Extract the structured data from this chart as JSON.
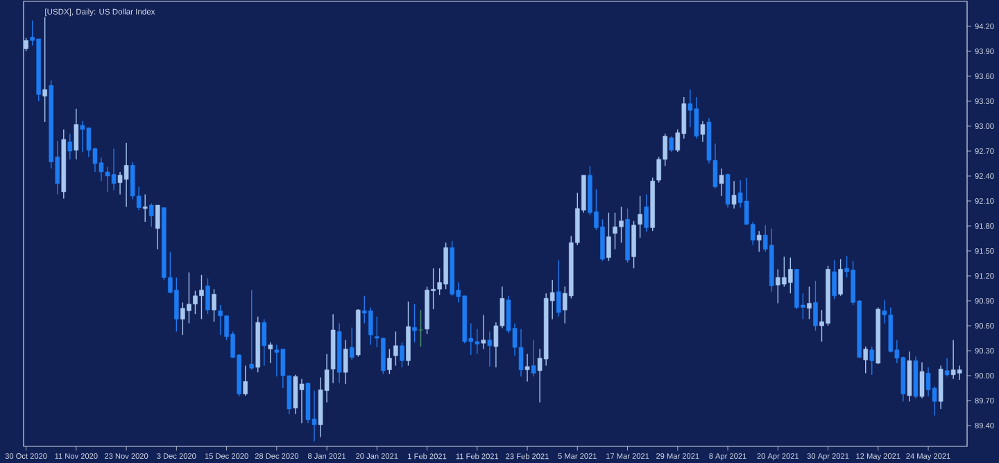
{
  "chart_data": {
    "type": "candlestick",
    "title": "[USDX], Daily:  US Dollar Index",
    "categories": [
      "30 Oct 2020",
      null,
      null,
      null,
      null,
      null,
      null,
      null,
      "11 Nov 2020",
      null,
      null,
      null,
      null,
      null,
      null,
      null,
      "23 Nov 2020",
      null,
      null,
      null,
      null,
      null,
      null,
      null,
      "3 Dec 2020",
      null,
      null,
      null,
      null,
      null,
      null,
      null,
      "15 Dec 2020",
      null,
      null,
      null,
      null,
      null,
      null,
      null,
      "28 Dec 2020",
      null,
      null,
      null,
      null,
      null,
      null,
      null,
      "8 Jan 2021",
      null,
      null,
      null,
      null,
      null,
      null,
      null,
      "20 Jan 2021",
      null,
      null,
      null,
      null,
      null,
      null,
      null,
      "1 Feb 2021",
      null,
      null,
      null,
      null,
      null,
      null,
      null,
      "11 Feb 2021",
      null,
      null,
      null,
      null,
      null,
      null,
      null,
      "23 Feb 2021",
      null,
      null,
      null,
      null,
      null,
      null,
      null,
      "5 Mar 2021",
      null,
      null,
      null,
      null,
      null,
      null,
      null,
      "17 Mar 2021",
      null,
      null,
      null,
      null,
      null,
      null,
      null,
      "29 Mar 2021",
      null,
      null,
      null,
      null,
      null,
      null,
      null,
      "8 Apr 2021",
      null,
      null,
      null,
      null,
      null,
      null,
      null,
      "20 Apr 2021",
      null,
      null,
      null,
      null,
      null,
      null,
      null,
      "30 Apr 2021",
      null,
      null,
      null,
      null,
      null,
      null,
      null,
      "12 May 2021",
      null,
      null,
      null,
      null,
      null,
      null,
      null,
      "24 May 2021",
      null,
      null,
      null,
      null,
      null
    ],
    "ohlc": [
      [
        93.93,
        94.06,
        93.9,
        94.03
      ],
      [
        94.07,
        94.27,
        93.97,
        94.03
      ],
      [
        94.05,
        94.05,
        93.3,
        93.38
      ],
      [
        93.36,
        94.31,
        93.05,
        93.44
      ],
      [
        93.49,
        93.55,
        92.49,
        92.57
      ],
      [
        92.63,
        92.82,
        92.18,
        92.31
      ],
      [
        92.21,
        92.96,
        92.13,
        92.84
      ],
      [
        92.81,
        92.91,
        92.6,
        92.7
      ],
      [
        92.71,
        93.21,
        92.6,
        93.02
      ],
      [
        93.01,
        93.06,
        92.69,
        92.96
      ],
      [
        92.98,
        92.98,
        92.63,
        92.71
      ],
      [
        92.73,
        92.74,
        92.45,
        92.55
      ],
      [
        92.56,
        92.62,
        92.34,
        92.45
      ],
      [
        92.45,
        92.51,
        92.21,
        92.4
      ],
      [
        92.42,
        92.73,
        92.23,
        92.31
      ],
      [
        92.32,
        92.45,
        92.18,
        92.41
      ],
      [
        92.36,
        92.8,
        92.03,
        92.53
      ],
      [
        92.53,
        92.57,
        92.12,
        92.16
      ],
      [
        92.16,
        92.27,
        91.99,
        92.02
      ],
      [
        92.01,
        92.18,
        91.85,
        92.03
      ],
      [
        92.05,
        92.07,
        91.79,
        91.92
      ],
      [
        91.77,
        92.05,
        91.52,
        92.05
      ],
      [
        92.02,
        92.02,
        91.15,
        91.18
      ],
      [
        91.18,
        91.49,
        90.99,
        91.0
      ],
      [
        91.03,
        91.18,
        90.53,
        90.68
      ],
      [
        90.68,
        90.88,
        90.49,
        90.81
      ],
      [
        90.78,
        91.24,
        90.63,
        90.86
      ],
      [
        90.86,
        91.02,
        90.74,
        90.96
      ],
      [
        90.96,
        91.21,
        90.68,
        91.03
      ],
      [
        91.08,
        91.17,
        90.74,
        90.79
      ],
      [
        90.79,
        91.04,
        90.65,
        90.98
      ],
      [
        90.78,
        90.85,
        90.49,
        90.72
      ],
      [
        90.72,
        90.72,
        90.43,
        90.47
      ],
      [
        90.5,
        90.53,
        90.21,
        90.22
      ],
      [
        90.25,
        90.26,
        89.75,
        89.78
      ],
      [
        89.78,
        90.12,
        89.76,
        89.93
      ],
      [
        90.14,
        91.03,
        90.07,
        90.09
      ],
      [
        90.1,
        90.71,
        90.04,
        90.64
      ],
      [
        90.64,
        90.68,
        90.12,
        90.36
      ],
      [
        90.32,
        90.4,
        90.15,
        90.37
      ],
      [
        90.31,
        90.37,
        89.99,
        90.28
      ],
      [
        90.32,
        90.32,
        89.85,
        90.0
      ],
      [
        90.0,
        90.0,
        89.54,
        89.6
      ],
      [
        89.61,
        90.01,
        89.54,
        89.99
      ],
      [
        89.83,
        89.96,
        89.43,
        89.9
      ],
      [
        89.91,
        89.91,
        89.43,
        89.47
      ],
      [
        89.48,
        89.82,
        89.21,
        89.41
      ],
      [
        89.41,
        89.98,
        89.26,
        89.83
      ],
      [
        89.82,
        90.26,
        89.68,
        90.07
      ],
      [
        90.08,
        90.74,
        89.91,
        90.55
      ],
      [
        90.53,
        90.63,
        89.91,
        90.04
      ],
      [
        90.04,
        90.43,
        89.9,
        90.32
      ],
      [
        90.34,
        90.58,
        90.19,
        90.22
      ],
      [
        90.25,
        90.8,
        90.23,
        90.79
      ],
      [
        90.78,
        90.96,
        90.63,
        90.75
      ],
      [
        90.78,
        90.82,
        90.37,
        90.49
      ],
      [
        90.47,
        90.71,
        90.34,
        90.45
      ],
      [
        90.45,
        90.46,
        90.02,
        90.06
      ],
      [
        90.07,
        90.32,
        90.02,
        90.21
      ],
      [
        90.24,
        90.53,
        90.12,
        90.36
      ],
      [
        90.36,
        90.4,
        90.1,
        90.18
      ],
      [
        90.18,
        90.89,
        90.12,
        90.59
      ],
      [
        90.58,
        90.86,
        90.4,
        90.54
      ],
      [
        90.55,
        90.79,
        90.35,
        90.55
      ],
      [
        90.56,
        91.07,
        90.5,
        91.03
      ],
      [
        91.02,
        91.29,
        90.8,
        91.04
      ],
      [
        91.04,
        91.29,
        90.97,
        91.12
      ],
      [
        91.1,
        91.6,
        91.04,
        91.54
      ],
      [
        91.54,
        91.62,
        90.96,
        90.98
      ],
      [
        91.03,
        91.12,
        90.88,
        90.95
      ],
      [
        90.96,
        90.96,
        90.39,
        90.41
      ],
      [
        90.45,
        90.63,
        90.25,
        90.41
      ],
      [
        90.41,
        90.56,
        90.26,
        90.38
      ],
      [
        90.39,
        90.73,
        90.32,
        90.43
      ],
      [
        90.43,
        90.53,
        90.11,
        90.36
      ],
      [
        90.35,
        90.64,
        90.1,
        90.6
      ],
      [
        90.6,
        91.07,
        90.57,
        90.93
      ],
      [
        90.91,
        90.96,
        90.51,
        90.54
      ],
      [
        90.57,
        90.63,
        90.24,
        90.34
      ],
      [
        90.34,
        90.56,
        89.99,
        90.07
      ],
      [
        90.07,
        90.26,
        89.93,
        90.11
      ],
      [
        90.12,
        90.43,
        89.99,
        90.03
      ],
      [
        90.06,
        90.32,
        89.68,
        90.21
      ],
      [
        90.2,
        90.99,
        90.12,
        90.93
      ],
      [
        90.9,
        91.15,
        90.68,
        91.0
      ],
      [
        91.01,
        91.39,
        90.71,
        90.76
      ],
      [
        90.79,
        91.07,
        90.63,
        90.99
      ],
      [
        90.96,
        91.68,
        90.93,
        91.6
      ],
      [
        91.6,
        92.2,
        91.57,
        92.01
      ],
      [
        91.99,
        92.41,
        91.96,
        92.41
      ],
      [
        92.41,
        92.52,
        91.93,
        91.96
      ],
      [
        91.97,
        92.24,
        91.75,
        91.78
      ],
      [
        91.79,
        91.88,
        91.38,
        91.4
      ],
      [
        91.42,
        91.96,
        91.38,
        91.67
      ],
      [
        91.71,
        91.96,
        91.52,
        91.79
      ],
      [
        91.79,
        92.03,
        91.6,
        91.86
      ],
      [
        91.88,
        92.01,
        91.36,
        91.39
      ],
      [
        91.43,
        91.86,
        91.29,
        91.81
      ],
      [
        91.82,
        92.16,
        91.66,
        91.94
      ],
      [
        92.03,
        92.18,
        91.73,
        91.78
      ],
      [
        91.78,
        92.38,
        91.74,
        92.34
      ],
      [
        92.35,
        92.63,
        92.32,
        92.6
      ],
      [
        92.6,
        92.91,
        92.52,
        92.88
      ],
      [
        92.86,
        92.88,
        92.69,
        92.71
      ],
      [
        92.71,
        92.96,
        92.69,
        92.92
      ],
      [
        92.91,
        93.35,
        92.85,
        93.27
      ],
      [
        93.27,
        93.44,
        92.99,
        93.19
      ],
      [
        93.21,
        93.35,
        92.85,
        92.88
      ],
      [
        92.9,
        93.06,
        92.81,
        93.02
      ],
      [
        93.05,
        93.1,
        92.55,
        92.59
      ],
      [
        92.59,
        92.79,
        92.25,
        92.27
      ],
      [
        92.31,
        92.49,
        92.16,
        92.41
      ],
      [
        92.42,
        92.43,
        92.02,
        92.06
      ],
      [
        92.06,
        92.34,
        92.01,
        92.17
      ],
      [
        92.2,
        92.35,
        92.02,
        92.08
      ],
      [
        92.1,
        92.38,
        91.81,
        91.82
      ],
      [
        91.82,
        91.85,
        91.57,
        91.63
      ],
      [
        91.63,
        91.74,
        91.49,
        91.69
      ],
      [
        91.69,
        91.81,
        91.49,
        91.52
      ],
      [
        91.57,
        91.77,
        91.01,
        91.08
      ],
      [
        91.09,
        91.28,
        90.87,
        91.18
      ],
      [
        91.1,
        91.43,
        91.07,
        91.18
      ],
      [
        91.12,
        91.42,
        90.99,
        91.28
      ],
      [
        91.28,
        91.28,
        90.8,
        90.82
      ],
      [
        90.85,
        90.99,
        90.68,
        90.82
      ],
      [
        90.81,
        91.07,
        90.68,
        90.87
      ],
      [
        90.88,
        91.14,
        90.54,
        90.6
      ],
      [
        90.6,
        90.79,
        90.41,
        90.65
      ],
      [
        90.63,
        91.32,
        90.6,
        91.28
      ],
      [
        91.25,
        91.39,
        90.92,
        90.96
      ],
      [
        90.98,
        91.4,
        90.96,
        91.28
      ],
      [
        91.29,
        91.44,
        91.18,
        91.25
      ],
      [
        91.27,
        91.38,
        90.85,
        90.88
      ],
      [
        90.9,
        90.91,
        90.21,
        90.22
      ],
      [
        90.19,
        90.35,
        90.03,
        90.32
      ],
      [
        90.31,
        90.35,
        90.01,
        90.18
      ],
      [
        90.15,
        90.82,
        90.14,
        90.8
      ],
      [
        90.78,
        90.91,
        90.63,
        90.73
      ],
      [
        90.73,
        90.82,
        90.28,
        90.29
      ],
      [
        90.31,
        90.43,
        90.15,
        90.21
      ],
      [
        90.22,
        90.23,
        89.69,
        89.78
      ],
      [
        89.76,
        90.29,
        89.69,
        90.18
      ],
      [
        90.18,
        90.23,
        89.73,
        89.75
      ],
      [
        89.75,
        90.16,
        89.73,
        90.05
      ],
      [
        90.03,
        90.1,
        89.75,
        89.83
      ],
      [
        89.85,
        89.87,
        89.52,
        89.69
      ],
      [
        89.69,
        90.12,
        89.6,
        90.08
      ],
      [
        90.06,
        90.21,
        89.99,
        90.01
      ],
      [
        90.01,
        90.43,
        89.96,
        90.07
      ],
      [
        90.03,
        90.12,
        89.95,
        90.07
      ]
    ],
    "colors": [
      "#a8c8f0",
      "#1e7cf2",
      "#1e7cf2",
      "#a8c8f0",
      "#1e7cf2",
      "#1e7cf2",
      "#a8c8f0",
      "#1e7cf2",
      "#a8c8f0",
      "#1e7cf2",
      "#1e7cf2",
      "#1e7cf2",
      "#1e7cf2",
      "#1e7cf2",
      "#1e7cf2",
      "#a8c8f0",
      "#a8c8f0",
      "#1e7cf2",
      "#1e7cf2",
      "#a8c8f0",
      "#1e7cf2",
      "#a8c8f0",
      "#1e7cf2",
      "#1e7cf2",
      "#1e7cf2",
      "#a8c8f0",
      "#a8c8f0",
      "#a8c8f0",
      "#a8c8f0",
      "#1e7cf2",
      "#a8c8f0",
      "#1e7cf2",
      "#1e7cf2",
      "#1e7cf2",
      "#1e7cf2",
      "#a8c8f0",
      "#1e7cf2",
      "#a8c8f0",
      "#1e7cf2",
      "#a8c8f0",
      "#1e7cf2",
      "#1e7cf2",
      "#1e7cf2",
      "#a8c8f0",
      "#a8c8f0",
      "#1e7cf2",
      "#1e7cf2",
      "#a8c8f0",
      "#a8c8f0",
      "#a8c8f0",
      "#1e7cf2",
      "#a8c8f0",
      "#1e7cf2",
      "#a8c8f0",
      "#1e7cf2",
      "#1e7cf2",
      "#1e7cf2",
      "#1e7cf2",
      "#a8c8f0",
      "#a8c8f0",
      "#1e7cf2",
      "#a8c8f0",
      "#1e7cf2",
      "#4f9a70",
      "#a8c8f0",
      "#a8c8f0",
      "#a8c8f0",
      "#a8c8f0",
      "#1e7cf2",
      "#1e7cf2",
      "#1e7cf2",
      "#1e7cf2",
      "#1e7cf2",
      "#a8c8f0",
      "#1e7cf2",
      "#a8c8f0",
      "#a8c8f0",
      "#1e7cf2",
      "#1e7cf2",
      "#1e7cf2",
      "#a8c8f0",
      "#1e7cf2",
      "#a8c8f0",
      "#a8c8f0",
      "#a8c8f0",
      "#1e7cf2",
      "#a8c8f0",
      "#a8c8f0",
      "#a8c8f0",
      "#a8c8f0",
      "#1e7cf2",
      "#1e7cf2",
      "#1e7cf2",
      "#a8c8f0",
      "#a8c8f0",
      "#a8c8f0",
      "#1e7cf2",
      "#a8c8f0",
      "#a8c8f0",
      "#1e7cf2",
      "#a8c8f0",
      "#a8c8f0",
      "#a8c8f0",
      "#1e7cf2",
      "#a8c8f0",
      "#a8c8f0",
      "#1e7cf2",
      "#1e7cf2",
      "#a8c8f0",
      "#1e7cf2",
      "#1e7cf2",
      "#a8c8f0",
      "#1e7cf2",
      "#a8c8f0",
      "#1e7cf2",
      "#1e7cf2",
      "#1e7cf2",
      "#a8c8f0",
      "#1e7cf2",
      "#1e7cf2",
      "#a8c8f0",
      "#a8c8f0",
      "#a8c8f0",
      "#1e7cf2",
      "#1e7cf2",
      "#a8c8f0",
      "#1e7cf2",
      "#a8c8f0",
      "#a8c8f0",
      "#1e7cf2",
      "#a8c8f0",
      "#1e7cf2",
      "#1e7cf2",
      "#1e7cf2",
      "#a8c8f0",
      "#1e7cf2",
      "#a8c8f0",
      "#1e7cf2",
      "#1e7cf2",
      "#1e7cf2",
      "#1e7cf2",
      "#a8c8f0",
      "#1e7cf2",
      "#a8c8f0",
      "#1e7cf2",
      "#1e7cf2",
      "#a8c8f0",
      "#1e7cf2",
      "#a8c8f0",
      "#a8c8f0"
    ],
    "ylim": [
      89.15,
      94.5
    ],
    "yticks": [
      {
        "value": 94.2,
        "label": "94.20"
      },
      {
        "value": 93.9,
        "label": "93.90"
      },
      {
        "value": 93.6,
        "label": "93.60"
      },
      {
        "value": 93.3,
        "label": "93.30"
      },
      {
        "value": 93.0,
        "label": "93.00"
      },
      {
        "value": 92.7,
        "label": "92.70"
      },
      {
        "value": 92.4,
        "label": "92.40"
      },
      {
        "value": 92.1,
        "label": "92.10"
      },
      {
        "value": 91.8,
        "label": "91.80"
      },
      {
        "value": 91.5,
        "label": "91.50"
      },
      {
        "value": 91.2,
        "label": "91.20"
      },
      {
        "value": 90.9,
        "label": "90.90"
      },
      {
        "value": 90.6,
        "label": "90.60"
      },
      {
        "value": 90.3,
        "label": "90.30"
      },
      {
        "value": 90.0,
        "label": "90.00"
      },
      {
        "value": 89.7,
        "label": "89.70"
      },
      {
        "value": 89.4,
        "label": "89.40"
      }
    ]
  }
}
